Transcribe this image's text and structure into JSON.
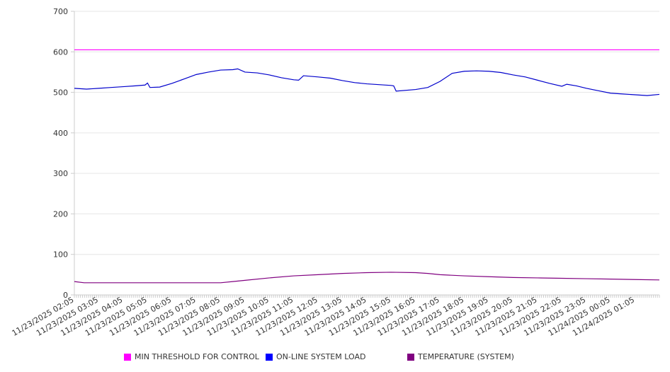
{
  "chart_data": {
    "type": "line",
    "title": "",
    "xlabel": "",
    "ylabel": "",
    "ylim": [
      0,
      700
    ],
    "yticks": [
      0,
      100,
      200,
      300,
      400,
      500,
      600,
      700
    ],
    "xlim_hours": [
      0,
      24
    ],
    "xtick_labels": [
      "11/23/2025 02:05",
      "11/23/2025 03:05",
      "11/23/2025 04:05",
      "11/23/2025 05:05",
      "11/23/2025 06:05",
      "11/23/2025 07:05",
      "11/23/2025 08:05",
      "11/23/2025 09:05",
      "11/23/2025 10:05",
      "11/23/2025 11:05",
      "11/23/2025 12:05",
      "11/23/2025 13:05",
      "11/23/2025 14:05",
      "11/23/2025 15:05",
      "11/23/2025 16:05",
      "11/23/2025 17:05",
      "11/23/2025 18:05",
      "11/23/2025 19:05",
      "11/23/2025 20:05",
      "11/23/2025 21:05",
      "11/23/2025 22:05",
      "11/23/2025 23:05",
      "11/24/2025 00:05",
      "11/24/2025 01:05"
    ],
    "grid": true,
    "legend_position": "bottom",
    "series": [
      {
        "name": "MIN THRESHOLD FOR CONTROL",
        "color": "#ff00ff",
        "points": [
          [
            0,
            605
          ],
          [
            24,
            605
          ]
        ]
      },
      {
        "name": "ON-LINE SYSTEM LOAD",
        "color": "#0000cc",
        "points": [
          [
            0,
            510
          ],
          [
            0.5,
            508
          ],
          [
            1,
            510
          ],
          [
            1.5,
            512
          ],
          [
            2,
            514
          ],
          [
            2.5,
            516
          ],
          [
            2.9,
            518
          ],
          [
            3,
            523
          ],
          [
            3.1,
            512
          ],
          [
            3.5,
            513
          ],
          [
            4,
            522
          ],
          [
            4.5,
            533
          ],
          [
            5,
            544
          ],
          [
            5.5,
            550
          ],
          [
            6,
            555
          ],
          [
            6.5,
            556
          ],
          [
            6.7,
            558
          ],
          [
            7,
            550
          ],
          [
            7.5,
            548
          ],
          [
            8,
            543
          ],
          [
            8.5,
            536
          ],
          [
            9,
            531
          ],
          [
            9.2,
            530
          ],
          [
            9.4,
            541
          ],
          [
            10,
            538
          ],
          [
            10.5,
            535
          ],
          [
            11,
            529
          ],
          [
            11.5,
            524
          ],
          [
            12,
            521
          ],
          [
            12.5,
            519
          ],
          [
            13,
            517
          ],
          [
            13.1,
            516
          ],
          [
            13.2,
            503
          ],
          [
            14,
            507
          ],
          [
            14.5,
            512
          ],
          [
            15,
            527
          ],
          [
            15.5,
            547
          ],
          [
            16,
            552
          ],
          [
            16.5,
            553
          ],
          [
            17,
            552
          ],
          [
            17.5,
            549
          ],
          [
            18,
            543
          ],
          [
            18.5,
            538
          ],
          [
            19,
            530
          ],
          [
            19.5,
            522
          ],
          [
            20,
            515
          ],
          [
            20.2,
            520
          ],
          [
            20.6,
            516
          ],
          [
            21,
            510
          ],
          [
            21.5,
            504
          ],
          [
            22,
            498
          ],
          [
            22.5,
            496
          ],
          [
            23,
            494
          ],
          [
            23.5,
            492
          ],
          [
            24,
            495
          ]
        ]
      },
      {
        "name": "TEMPERATURE (SYSTEM)",
        "color": "#800080",
        "points": [
          [
            0,
            33
          ],
          [
            0.4,
            30
          ],
          [
            6,
            30
          ],
          [
            6.5,
            33
          ],
          [
            7,
            36
          ],
          [
            8,
            42
          ],
          [
            9,
            47
          ],
          [
            10,
            50
          ],
          [
            11,
            53
          ],
          [
            12,
            55
          ],
          [
            13,
            56
          ],
          [
            14,
            55
          ],
          [
            14.5,
            53
          ],
          [
            15,
            50
          ],
          [
            16,
            47
          ],
          [
            17,
            45
          ],
          [
            18,
            43
          ],
          [
            19,
            42
          ],
          [
            20,
            41
          ],
          [
            21,
            40
          ],
          [
            22,
            39
          ],
          [
            23,
            38
          ],
          [
            24,
            37
          ]
        ]
      }
    ]
  }
}
